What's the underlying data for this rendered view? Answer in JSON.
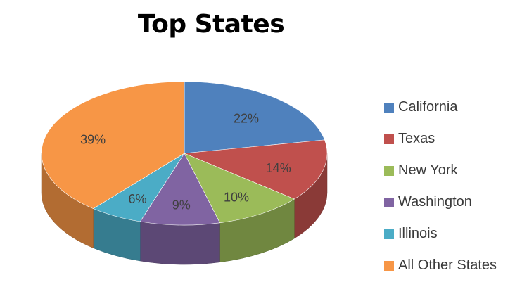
{
  "chart_data": {
    "type": "pie",
    "title": "Top States",
    "legend_position": "right",
    "slices": [
      {
        "label": "California",
        "value": 22,
        "display": "22%",
        "color": "#4F81BD"
      },
      {
        "label": "Texas",
        "value": 14,
        "display": "14%",
        "color": "#C0504D"
      },
      {
        "label": "New York",
        "value": 10,
        "display": "10%",
        "color": "#9BBB59"
      },
      {
        "label": "Washington",
        "value": 9,
        "display": "9%",
        "color": "#8064A2"
      },
      {
        "label": "Illinois",
        "value": 6,
        "display": "6%",
        "color": "#4BACC6"
      },
      {
        "label": "All Other States",
        "value": 39,
        "display": "39%",
        "color": "#F79646"
      }
    ]
  }
}
